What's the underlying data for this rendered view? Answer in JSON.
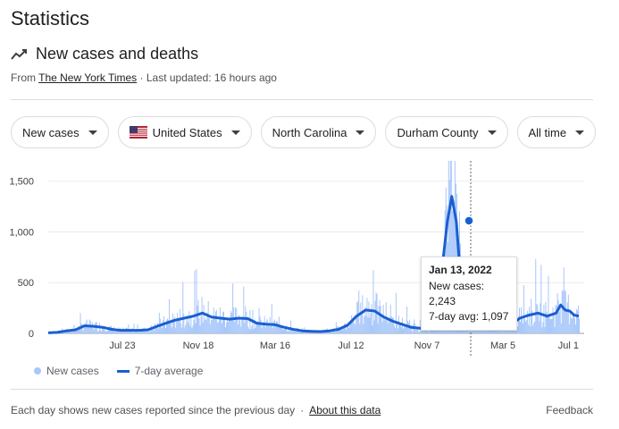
{
  "header": {
    "heading": "Statistics",
    "title": "New cases and deaths"
  },
  "source": {
    "prefix": "From",
    "link": "The New York Times",
    "separator": "·",
    "updated": "Last updated: 16 hours ago"
  },
  "filters": [
    {
      "label": "New cases"
    },
    {
      "label": "United States"
    },
    {
      "label": "North Carolina"
    },
    {
      "label": "Durham County"
    },
    {
      "label": "All time"
    }
  ],
  "tooltip": {
    "date": "Jan 13, 2022",
    "new_cases": "New cases: 2,243",
    "avg": "7-day avg: 1,097"
  },
  "legend": {
    "bars": "New cases",
    "line": "7-day average"
  },
  "footer": {
    "note": "Each day shows new cases reported since the previous day",
    "separator": "·",
    "about": "About this data",
    "feedback": "Feedback"
  },
  "colors": {
    "bar": "#a8c7fa",
    "line": "#1a5fd1"
  },
  "chart_data": {
    "type": "bar",
    "y_ticks": [
      "0",
      "500",
      "1,000",
      "1,500"
    ],
    "y_tick_values": [
      0,
      500,
      1000,
      1500
    ],
    "ylim": [
      0,
      1700
    ],
    "x_ticks": [
      "Jul 23",
      "Nov 18",
      "Mar 16",
      "Jul 12",
      "Nov 7",
      "Mar 5",
      "Jul 1"
    ],
    "series": [
      {
        "name": "New cases"
      },
      {
        "name": "7-day average",
        "points": [
          [
            0,
            5
          ],
          [
            20,
            10
          ],
          [
            40,
            25
          ],
          [
            60,
            35
          ],
          [
            80,
            75
          ],
          [
            100,
            70
          ],
          [
            120,
            60
          ],
          [
            140,
            40
          ],
          [
            160,
            30
          ],
          [
            180,
            30
          ],
          [
            200,
            30
          ],
          [
            220,
            35
          ],
          [
            240,
            70
          ],
          [
            260,
            100
          ],
          [
            280,
            130
          ],
          [
            300,
            150
          ],
          [
            320,
            170
          ],
          [
            340,
            200
          ],
          [
            360,
            160
          ],
          [
            380,
            150
          ],
          [
            400,
            140
          ],
          [
            420,
            150
          ],
          [
            440,
            145
          ],
          [
            460,
            100
          ],
          [
            480,
            90
          ],
          [
            500,
            85
          ],
          [
            520,
            60
          ],
          [
            540,
            40
          ],
          [
            560,
            25
          ],
          [
            580,
            20
          ],
          [
            600,
            18
          ],
          [
            620,
            25
          ],
          [
            640,
            40
          ],
          [
            660,
            80
          ],
          [
            680,
            170
          ],
          [
            700,
            230
          ],
          [
            720,
            220
          ],
          [
            740,
            160
          ],
          [
            760,
            120
          ],
          [
            780,
            90
          ],
          [
            800,
            60
          ],
          [
            820,
            50
          ],
          [
            840,
            50
          ],
          [
            850,
            100
          ],
          [
            860,
            300
          ],
          [
            870,
            700
          ],
          [
            880,
            1100
          ],
          [
            890,
            1350
          ],
          [
            900,
            1100
          ],
          [
            910,
            500
          ],
          [
            920,
            250
          ],
          [
            930,
            150
          ],
          [
            940,
            100
          ],
          [
            960,
            70
          ],
          [
            980,
            60
          ],
          [
            1000,
            60
          ],
          [
            1020,
            80
          ],
          [
            1040,
            150
          ],
          [
            1060,
            180
          ],
          [
            1080,
            200
          ],
          [
            1100,
            170
          ],
          [
            1120,
            200
          ],
          [
            1130,
            280
          ],
          [
            1140,
            230
          ],
          [
            1150,
            220
          ],
          [
            1160,
            180
          ],
          [
            1170,
            170
          ]
        ]
      }
    ]
  }
}
